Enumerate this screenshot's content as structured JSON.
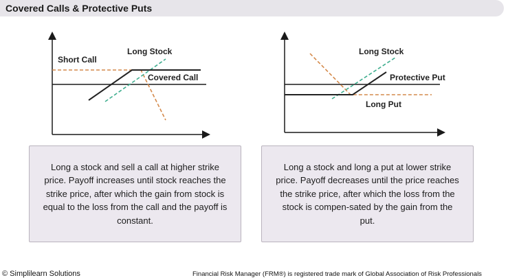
{
  "header": {
    "title": "Covered Calls & Protective Puts"
  },
  "covered_call": {
    "labels": {
      "short_call": "Short Call",
      "long_stock": "Long Stock",
      "covered_call": "Covered Call"
    },
    "description": "Long a stock and sell a call at higher strike price. Payoff increases until stock reaches the strike price, after which the gain from stock is equal to the loss from the call and the payoff is constant."
  },
  "protective_put": {
    "labels": {
      "long_stock": "Long Stock",
      "protective_put": "Protective Put",
      "long_put": "Long Put"
    },
    "description": "Long a stock and long a put at lower strike price. Payoff decreases until the price reaches the strike price, after which the loss from the stock is compen-sated by the gain from the put."
  },
  "colors": {
    "axis": "#1a1a1a",
    "short_call": "#d4894a",
    "long_stock": "#3fae8f",
    "payoff": "#222222",
    "box_bg": "#ece8ef"
  },
  "footer": {
    "copyright": "© Simplilearn Solutions",
    "trademark": "Financial Risk Manager (FRM®) is registered trade mark of Global Association of Risk Professionals"
  }
}
